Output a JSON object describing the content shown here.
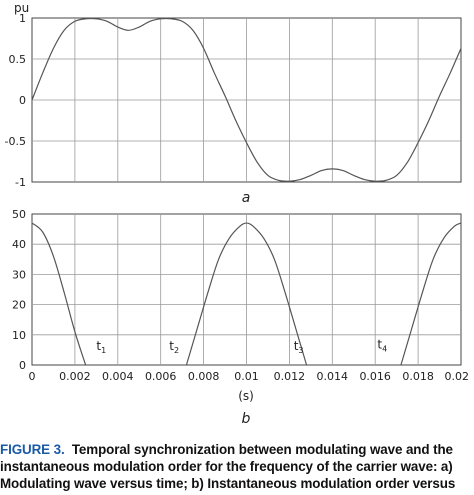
{
  "chart_data": [
    {
      "type": "line",
      "panel_label": "a",
      "ylabel": "pu",
      "xlim": [
        0,
        0.02
      ],
      "ylim": [
        -1,
        1
      ],
      "yticks": [
        "1",
        "0.5",
        "0",
        "-0.5",
        "-1"
      ],
      "ytick_values": [
        1,
        0.5,
        0,
        -0.5,
        -1
      ],
      "grid": true,
      "series": [
        {
          "x": [
            0,
            0.0005,
            0.001,
            0.0015,
            0.002,
            0.0025,
            0.003,
            0.0035,
            0.004,
            0.0045,
            0.005,
            0.0055,
            0.006,
            0.0065,
            0.007,
            0.0075,
            0.008,
            0.0085,
            0.009,
            0.0095,
            0.01,
            0.0105,
            0.011,
            0.0115,
            0.012,
            0.0125,
            0.013,
            0.0135,
            0.014,
            0.0145,
            0.015,
            0.0155,
            0.016,
            0.0165,
            0.017,
            0.0175,
            0.018,
            0.0185,
            0.019,
            0.0195,
            0.02
          ],
          "y": [
            0,
            0.33,
            0.63,
            0.85,
            0.96,
            0.99,
            0.99,
            0.96,
            0.89,
            0.85,
            0.89,
            0.96,
            0.99,
            0.99,
            0.96,
            0.85,
            0.63,
            0.33,
            0.05,
            -0.25,
            -0.52,
            -0.76,
            -0.92,
            -0.98,
            -0.99,
            -0.97,
            -0.92,
            -0.86,
            -0.84,
            -0.86,
            -0.92,
            -0.97,
            -0.99,
            -0.98,
            -0.92,
            -0.76,
            -0.52,
            -0.25,
            0.05,
            0.33,
            0.63
          ]
        }
      ]
    },
    {
      "type": "line",
      "panel_label": "b",
      "xlabel": "(s)",
      "xlim": [
        0,
        0.02
      ],
      "ylim": [
        0,
        50
      ],
      "xticks": [
        "0",
        "0.002",
        "0.004",
        "0.006",
        "0.008",
        "0.01",
        "0.012",
        "0.014",
        "0.016",
        "0.018",
        "0.02"
      ],
      "xtick_values": [
        0,
        0.002,
        0.004,
        0.006,
        0.008,
        0.01,
        0.012,
        0.014,
        0.016,
        0.018,
        0.02
      ],
      "yticks": [
        "50",
        "40",
        "30",
        "20",
        "10",
        "0"
      ],
      "ytick_values": [
        50,
        40,
        30,
        20,
        10,
        0
      ],
      "grid": true,
      "series": [
        {
          "x": [
            0,
            0.0005,
            0.001,
            0.0015,
            0.002,
            0.0025
          ],
          "y": [
            47,
            44,
            36,
            24,
            11,
            0
          ]
        },
        {
          "x": [
            0.0072,
            0.0077,
            0.0082,
            0.0087,
            0.0092,
            0.0097,
            0.01,
            0.0103,
            0.0108,
            0.0113,
            0.0118,
            0.0123,
            0.0128
          ],
          "y": [
            0,
            12,
            24,
            35,
            42,
            46,
            47,
            46,
            42,
            35,
            24,
            12,
            0
          ]
        },
        {
          "x": [
            0.0172,
            0.0177,
            0.0182,
            0.0187,
            0.0192,
            0.0197,
            0.02
          ],
          "y": [
            0,
            12,
            24,
            35,
            42,
            46,
            47
          ]
        }
      ],
      "annotations": [
        {
          "label": "t",
          "sub": "1",
          "x": 0.003,
          "y": 5
        },
        {
          "label": "t",
          "sub": "2",
          "x": 0.0064,
          "y": 5
        },
        {
          "label": "t",
          "sub": "3",
          "x": 0.0122,
          "y": 5
        },
        {
          "label": "t",
          "sub": "4",
          "x": 0.0161,
          "y": 5.5
        }
      ]
    }
  ],
  "caption": {
    "figure_number": "FIGURE 3.",
    "lines": [
      "Temporal synchronization between modulating wave and the",
      "instantaneous modulation order for the frequency of the carrier wave: a)",
      "Modulating wave versus time; b) Instantaneous modulation order versus"
    ]
  }
}
